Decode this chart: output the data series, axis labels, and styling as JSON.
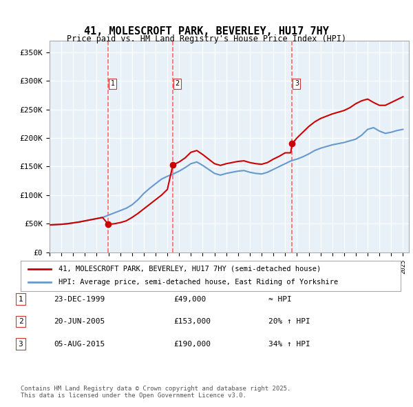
{
  "title": "41, MOLESCROFT PARK, BEVERLEY, HU17 7HY",
  "subtitle": "Price paid vs. HM Land Registry's House Price Index (HPI)",
  "ylabel_ticks": [
    "£0",
    "£50K",
    "£100K",
    "£150K",
    "£200K",
    "£250K",
    "£300K",
    "£350K"
  ],
  "ytick_vals": [
    0,
    50000,
    100000,
    150000,
    200000,
    250000,
    300000,
    350000
  ],
  "ylim": [
    0,
    370000
  ],
  "xlim_start": 1995.0,
  "xlim_end": 2025.5,
  "purchase_dates": [
    1999.98,
    2005.47,
    2015.59
  ],
  "purchase_prices": [
    49000,
    153000,
    190000
  ],
  "purchase_labels": [
    "1",
    "2",
    "3"
  ],
  "red_line_color": "#cc0000",
  "blue_line_color": "#6699cc",
  "dashed_line_color": "#ff6666",
  "background_color": "#e8f0f8",
  "grid_color": "#ffffff",
  "legend_label_red": "41, MOLESCROFT PARK, BEVERLEY, HU17 7HY (semi-detached house)",
  "legend_label_blue": "HPI: Average price, semi-detached house, East Riding of Yorkshire",
  "table_rows": [
    [
      "1",
      "23-DEC-1999",
      "£49,000",
      "≈ HPI"
    ],
    [
      "2",
      "20-JUN-2005",
      "£153,000",
      "20% ↑ HPI"
    ],
    [
      "3",
      "05-AUG-2015",
      "£190,000",
      "34% ↑ HPI"
    ]
  ],
  "footer_text": "Contains HM Land Registry data © Crown copyright and database right 2025.\nThis data is licensed under the Open Government Licence v3.0.",
  "hpi_years": [
    1995,
    1995.5,
    1996,
    1996.5,
    1997,
    1997.5,
    1998,
    1998.5,
    1999,
    1999.5,
    2000,
    2000.5,
    2001,
    2001.5,
    2002,
    2002.5,
    2003,
    2003.5,
    2004,
    2004.5,
    2005,
    2005.5,
    2006,
    2006.5,
    2007,
    2007.5,
    2008,
    2008.5,
    2009,
    2009.5,
    2010,
    2010.5,
    2011,
    2011.5,
    2012,
    2012.5,
    2013,
    2013.5,
    2014,
    2014.5,
    2015,
    2015.5,
    2016,
    2016.5,
    2017,
    2017.5,
    2018,
    2018.5,
    2019,
    2019.5,
    2020,
    2020.5,
    2021,
    2021.5,
    2022,
    2022.5,
    2023,
    2023.5,
    2024,
    2024.5,
    2025
  ],
  "hpi_values": [
    48000,
    48500,
    49000,
    50000,
    51500,
    53000,
    55000,
    57000,
    59000,
    61000,
    65000,
    69000,
    73000,
    77000,
    83000,
    92000,
    103000,
    112000,
    120000,
    128000,
    133000,
    137000,
    142000,
    148000,
    155000,
    158000,
    152000,
    145000,
    138000,
    135000,
    138000,
    140000,
    142000,
    143000,
    140000,
    138000,
    137000,
    140000,
    145000,
    150000,
    155000,
    160000,
    163000,
    167000,
    172000,
    178000,
    182000,
    185000,
    188000,
    190000,
    192000,
    195000,
    198000,
    205000,
    215000,
    218000,
    212000,
    208000,
    210000,
    213000,
    215000
  ],
  "red_years": [
    1995,
    1995.5,
    1996,
    1996.5,
    1997,
    1997.5,
    1998,
    1998.5,
    1999,
    1999.5,
    1999.98,
    2000,
    2000.5,
    2001,
    2001.5,
    2002,
    2002.5,
    2003,
    2003.5,
    2004,
    2004.5,
    2005,
    2005.47,
    2005.5,
    2006,
    2006.5,
    2007,
    2007.5,
    2008,
    2008.5,
    2009,
    2009.5,
    2010,
    2010.5,
    2011,
    2011.5,
    2012,
    2012.5,
    2013,
    2013.5,
    2014,
    2014.5,
    2015,
    2015.47,
    2015.59,
    2016,
    2016.5,
    2017,
    2017.5,
    2018,
    2018.5,
    2019,
    2019.5,
    2020,
    2020.5,
    2021,
    2021.5,
    2022,
    2022.5,
    2023,
    2023.5,
    2024,
    2024.5,
    2025
  ],
  "red_values": [
    48000,
    48500,
    49000,
    50000,
    51500,
    53000,
    55000,
    57000,
    59000,
    61000,
    49000,
    49000,
    50000,
    52000,
    55000,
    61000,
    68000,
    76000,
    84000,
    92000,
    100000,
    110000,
    153000,
    153000,
    158000,
    165000,
    175000,
    178000,
    171000,
    163000,
    155000,
    152000,
    155000,
    157000,
    159000,
    160000,
    157000,
    155000,
    154000,
    157000,
    163000,
    168000,
    174000,
    174000,
    190000,
    200000,
    210000,
    220000,
    228000,
    234000,
    238000,
    242000,
    245000,
    248000,
    253000,
    260000,
    265000,
    268000,
    262000,
    257000,
    257000,
    262000,
    267000,
    272000
  ]
}
